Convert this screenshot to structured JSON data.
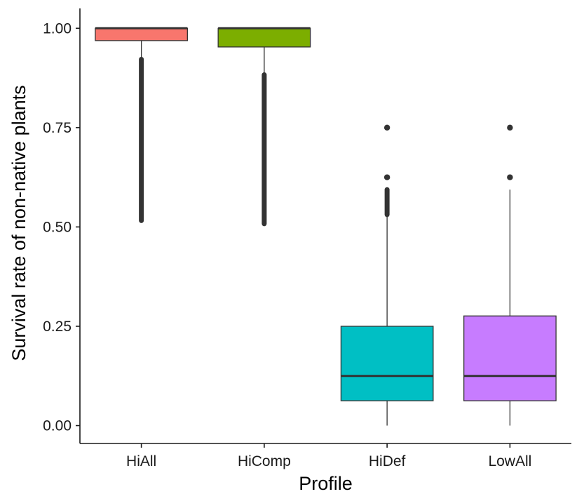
{
  "chart_data": {
    "type": "box",
    "title": "",
    "xlabel": "Profile",
    "ylabel": "Survival rate of non-native plants",
    "ylim": [
      -0.045,
      1.05
    ],
    "yticks": [
      {
        "value": 0.0,
        "label": "0.00"
      },
      {
        "value": 0.25,
        "label": "0.25"
      },
      {
        "value": 0.5,
        "label": "0.50"
      },
      {
        "value": 0.75,
        "label": "0.75"
      },
      {
        "value": 1.0,
        "label": "1.00"
      }
    ],
    "grid": false,
    "legend": "none",
    "categories": [
      "HiAll",
      "HiComp",
      "HiDef",
      "LowAll"
    ],
    "boxes": [
      {
        "category": "HiAll",
        "color": "#F8766D",
        "q1": 0.969,
        "median": 1.0,
        "q3": 1.0,
        "whisker_low": 0.922,
        "whisker_high": 1.0,
        "outliers": {
          "dense_range": [
            0.516,
            0.922
          ],
          "points": []
        }
      },
      {
        "category": "HiComp",
        "color": "#7CAE00",
        "q1": 0.953,
        "median": 1.0,
        "q3": 1.0,
        "whisker_low": 0.883,
        "whisker_high": 1.0,
        "outliers": {
          "dense_range": [
            0.508,
            0.883
          ],
          "points": []
        }
      },
      {
        "category": "HiDef",
        "color": "#00BFC4",
        "q1": 0.0625,
        "median": 0.125,
        "q3": 0.25,
        "whisker_low": 0.0,
        "whisker_high": 0.531,
        "outliers": {
          "dense_range": [
            0.531,
            0.594
          ],
          "points": [
            0.625,
            0.75
          ]
        }
      },
      {
        "category": "LowAll",
        "color": "#C77CFF",
        "q1": 0.0625,
        "median": 0.125,
        "q3": 0.276,
        "whisker_low": 0.0,
        "whisker_high": 0.594,
        "outliers": {
          "dense_range": null,
          "points": [
            0.625,
            0.75
          ]
        }
      }
    ]
  }
}
